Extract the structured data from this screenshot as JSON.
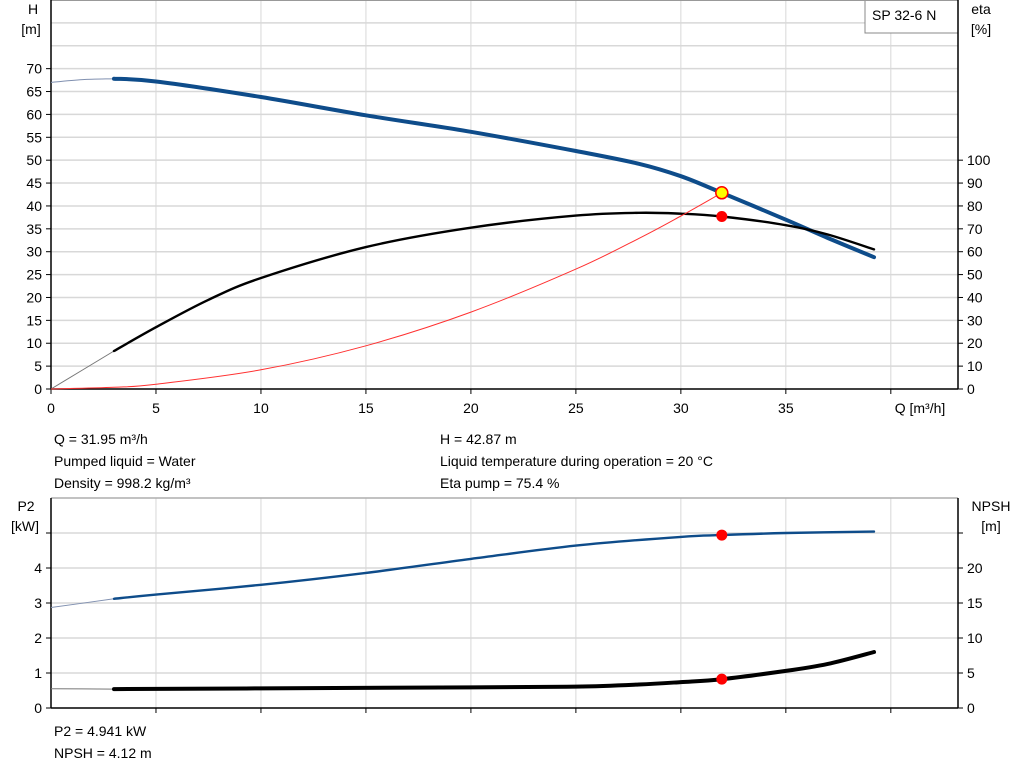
{
  "model_label": "SP 32-6 N",
  "colors": {
    "head": "#0e4c8a",
    "eta": "#000000",
    "system": "#ff3030",
    "p2": "#0e4c8a",
    "npsh": "#000000",
    "duty_point": "#ff0000",
    "duty_fill": "#ffff00",
    "grid": "#d8d8d8"
  },
  "chart_data": [
    {
      "type": "line",
      "xlabel": "Q [m³/h]",
      "x_ticks": [
        "0",
        "5",
        "10",
        "15",
        "20",
        "25",
        "30",
        "35"
      ],
      "xlim": [
        0,
        43.2
      ],
      "left_axis": {
        "label_line1": "H",
        "label_line2": "[m]",
        "ticks": [
          "0",
          "5",
          "10",
          "15",
          "20",
          "25",
          "30",
          "35",
          "40",
          "45",
          "50",
          "55",
          "60",
          "65",
          "70"
        ],
        "ylim": [
          0,
          85
        ]
      },
      "right_axis": {
        "label_line1": "eta",
        "label_line2": "[%]",
        "ticks": [
          "0",
          "10",
          "20",
          "30",
          "40",
          "50",
          "60",
          "70",
          "80",
          "90",
          "100"
        ],
        "ylim": [
          0,
          170
        ]
      },
      "grid": true,
      "series": [
        {
          "key": "head",
          "axis": "left",
          "x": [
            0,
            1.5,
            3,
            5,
            10,
            15,
            20,
            25,
            28,
            30,
            31.95,
            35,
            37,
            39.2
          ],
          "y": [
            67,
            67.6,
            67.8,
            67.2,
            63.8,
            59.8,
            56.2,
            52,
            49.2,
            46.5,
            42.87,
            37,
            33,
            28.8
          ],
          "thin_until": 3
        },
        {
          "key": "eta",
          "axis": "right",
          "x": [
            0,
            3,
            5,
            7.5,
            10,
            15,
            20,
            25,
            28,
            30,
            31.95,
            35,
            37,
            39.2
          ],
          "y": [
            0,
            16.6,
            27,
            39,
            48.5,
            62,
            70.5,
            75.8,
            77,
            76.6,
            75.4,
            71.6,
            67.5,
            61
          ],
          "thin_until": 3
        },
        {
          "key": "system",
          "axis": "left",
          "x": [
            0,
            3,
            5,
            10,
            15,
            20,
            25,
            28,
            30,
            31.95
          ],
          "y": [
            0,
            0.38,
            1.05,
            4.2,
            9.45,
            16.8,
            26.2,
            32.9,
            37.8,
            42.87
          ],
          "thin_until": 0
        }
      ],
      "duty_point": {
        "q": 31.95,
        "h": 42.87,
        "eta": 75.4
      }
    },
    {
      "type": "line",
      "x_ticks": [],
      "xlim": [
        0,
        43.2
      ],
      "left_axis": {
        "label_line1": "P2",
        "label_line2": "[kW]",
        "ticks": [
          "0",
          "1",
          "2",
          "3",
          "4"
        ],
        "ylim": [
          0,
          6
        ]
      },
      "right_axis": {
        "label_line1": "NPSH",
        "label_line2": "[m]",
        "ticks": [
          "0",
          "5",
          "10",
          "15",
          "20"
        ],
        "ylim": [
          0,
          30
        ]
      },
      "grid": true,
      "series": [
        {
          "key": "p2",
          "axis": "left",
          "x": [
            0,
            3,
            5,
            10,
            15,
            20,
            25,
            30,
            31.95,
            35,
            39.2
          ],
          "y": [
            2.87,
            3.12,
            3.24,
            3.52,
            3.86,
            4.26,
            4.64,
            4.89,
            4.941,
            5.0,
            5.04
          ],
          "thin_until": 3
        },
        {
          "key": "npsh",
          "axis": "right",
          "x": [
            0,
            3,
            10,
            20,
            25,
            28,
            30,
            31.95,
            35,
            37,
            39.2
          ],
          "y": [
            2.75,
            2.7,
            2.8,
            2.95,
            3.05,
            3.35,
            3.7,
            4.12,
            5.3,
            6.3,
            8.0
          ],
          "thin_until": 3
        }
      ],
      "duty_point": {
        "q": 31.95,
        "p2": 4.941,
        "npsh": 4.12
      }
    }
  ],
  "info_top": {
    "q": "Q = 31.95 m³/h",
    "liquid": "Pumped liquid = Water",
    "density": "Density = 998.2 kg/m³",
    "h": "H = 42.87 m",
    "temperature": "Liquid temperature during operation = 20 °C",
    "eta": "Eta pump = 75.4 %"
  },
  "info_bottom": {
    "p2": "P2 = 4.941 kW",
    "npsh": "NPSH = 4.12 m"
  }
}
